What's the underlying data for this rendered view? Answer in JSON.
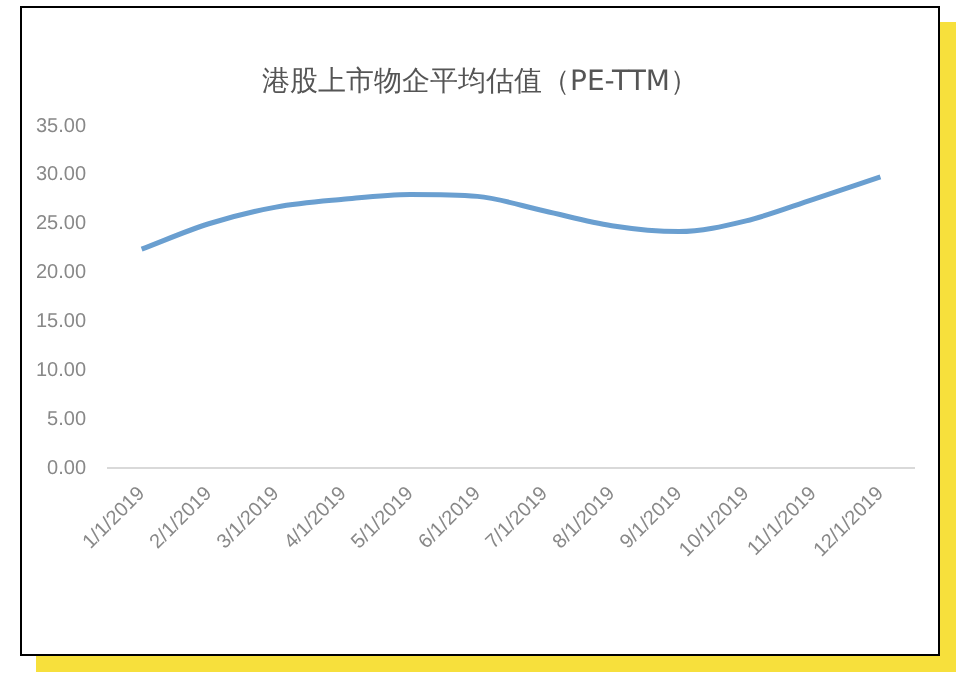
{
  "chart_data": {
    "type": "line",
    "title": "港股上市物企平均估值（PE-TTM）",
    "categories": [
      "1/1/2019",
      "2/1/2019",
      "3/1/2019",
      "4/1/2019",
      "5/1/2019",
      "6/1/2019",
      "7/1/2019",
      "8/1/2019",
      "9/1/2019",
      "10/1/2019",
      "11/1/2019",
      "12/1/2019"
    ],
    "series": [
      {
        "color": "#6a9fd0",
        "values": [
          22.4,
          25.0,
          26.7,
          27.5,
          28.0,
          27.8,
          26.3,
          24.8,
          24.2,
          25.3,
          27.5,
          29.8
        ]
      }
    ],
    "ylim": [
      0,
      35
    ],
    "yticks": [
      {
        "value": 0,
        "label": "0.00"
      },
      {
        "value": 5,
        "label": "5.00"
      },
      {
        "value": 10,
        "label": "10.00"
      },
      {
        "value": 15,
        "label": "15.00"
      },
      {
        "value": 20,
        "label": "20.00"
      },
      {
        "value": 25,
        "label": "25.00"
      },
      {
        "value": 30,
        "label": "30.00"
      },
      {
        "value": 35,
        "label": "35.00"
      }
    ],
    "grid": false,
    "legend": false,
    "marker": "none",
    "line_style": "solid"
  }
}
